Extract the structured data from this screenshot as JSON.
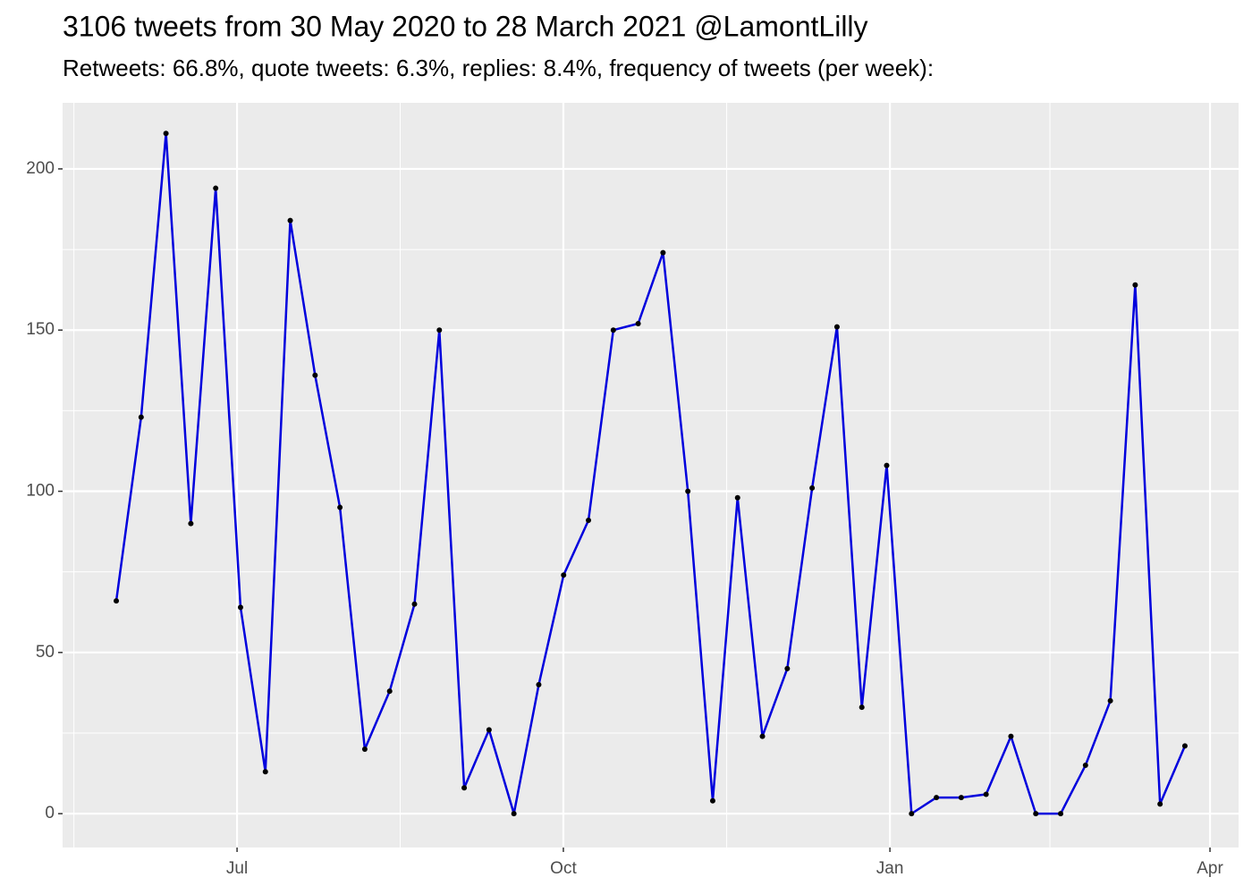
{
  "chart_data": {
    "type": "line",
    "title": "3106 tweets from 30 May 2020 to 28 March 2021 @LamontLilly",
    "subtitle": "Retweets: 66.8%, quote tweets: 6.3%, replies: 8.4%, frequency of tweets (per week):",
    "x": [
      0,
      1,
      2,
      3,
      4,
      5,
      6,
      7,
      8,
      9,
      10,
      11,
      12,
      13,
      14,
      15,
      16,
      17,
      18,
      19,
      20,
      21,
      22,
      23,
      24,
      25,
      26,
      27,
      28,
      29,
      30,
      31,
      32,
      33,
      34,
      35,
      36,
      37,
      38,
      39,
      40,
      41,
      42,
      43
    ],
    "series": [
      {
        "color": "#0000dd",
        "marker_color": "#000000",
        "values": [
          66,
          123,
          211,
          90,
          194,
          64,
          13,
          184,
          136,
          95,
          20,
          38,
          65,
          150,
          8,
          26,
          0,
          40,
          74,
          91,
          150,
          152,
          174,
          100,
          4,
          98,
          24,
          45,
          101,
          151,
          33,
          108,
          0,
          5,
          5,
          6,
          24,
          0,
          0,
          15,
          35,
          164,
          3,
          21
        ]
      }
    ],
    "xlim": [
      -2.16,
      45.16
    ],
    "xticks": [
      {
        "value": 4.86,
        "label": "Jul"
      },
      {
        "value": 17.99,
        "label": "Oct"
      },
      {
        "value": 31.13,
        "label": "Jan"
      },
      {
        "value": 44.01,
        "label": "Apr"
      }
    ],
    "ylim": [
      -10.5,
      220.5
    ],
    "yticks": [
      0,
      50,
      100,
      150,
      200
    ],
    "grid": true
  }
}
